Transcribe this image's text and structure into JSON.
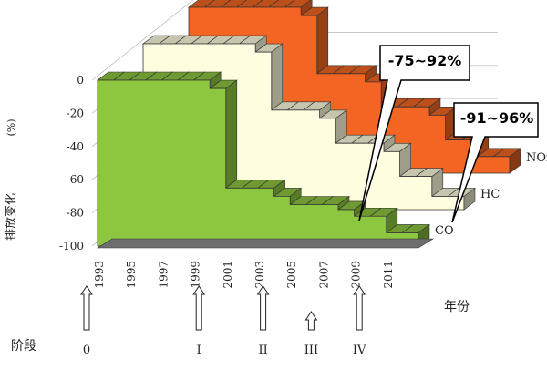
{
  "chart_data": {
    "type": "area",
    "ylabel": "排放变化",
    "yunit": "(%)",
    "ylim": [
      -100,
      0
    ],
    "yticks": [
      0,
      -20,
      -40,
      -60,
      -80,
      -100
    ],
    "x_axis_label": "年份",
    "years": [
      1993,
      1994,
      1995,
      1996,
      1997,
      1998,
      1999,
      2000,
      2001,
      2002,
      2003,
      2004,
      2005,
      2006,
      2007,
      2008,
      2009,
      2010,
      2011,
      2012
    ],
    "x_tick_labels": [
      "1993",
      "1995",
      "1997",
      "1999",
      "2001",
      "2003",
      "2005",
      "2007",
      "2009",
      "2011"
    ],
    "series": [
      {
        "name": "CO",
        "values": [
          0,
          0,
          0,
          0,
          0,
          0,
          0,
          -5,
          -65,
          -65,
          -65,
          -70,
          -75,
          -75,
          -75,
          -78,
          -82,
          -82,
          -92,
          -92
        ],
        "color": "#8dc63f"
      },
      {
        "name": "HC",
        "values": [
          0,
          0,
          0,
          0,
          0,
          0,
          0,
          -5,
          -40,
          -40,
          -40,
          -45,
          -60,
          -60,
          -60,
          -65,
          -80,
          -80,
          -92,
          -92
        ],
        "color": "#fffddf"
      },
      {
        "name": "NOx",
        "values": [
          0,
          0,
          0,
          0,
          0,
          0,
          0,
          -5,
          -40,
          -40,
          -40,
          -45,
          -60,
          -60,
          -60,
          -65,
          -80,
          -80,
          -90,
          -90
        ],
        "color": "#f26522"
      }
    ],
    "callouts": [
      "-75~92%",
      "-91~96%"
    ],
    "stage_label": "阶段",
    "stages": [
      {
        "label": "0",
        "year": 1993,
        "arrow": "large"
      },
      {
        "label": "I",
        "year": 2000,
        "arrow": "large"
      },
      {
        "label": "II",
        "year": 2004,
        "arrow": "large"
      },
      {
        "label": "III",
        "year": 2007,
        "arrow": "small"
      },
      {
        "label": "IV",
        "year": 2010,
        "arrow": "large"
      }
    ],
    "grid": true,
    "legend": "series names at right end of each ribbon"
  }
}
